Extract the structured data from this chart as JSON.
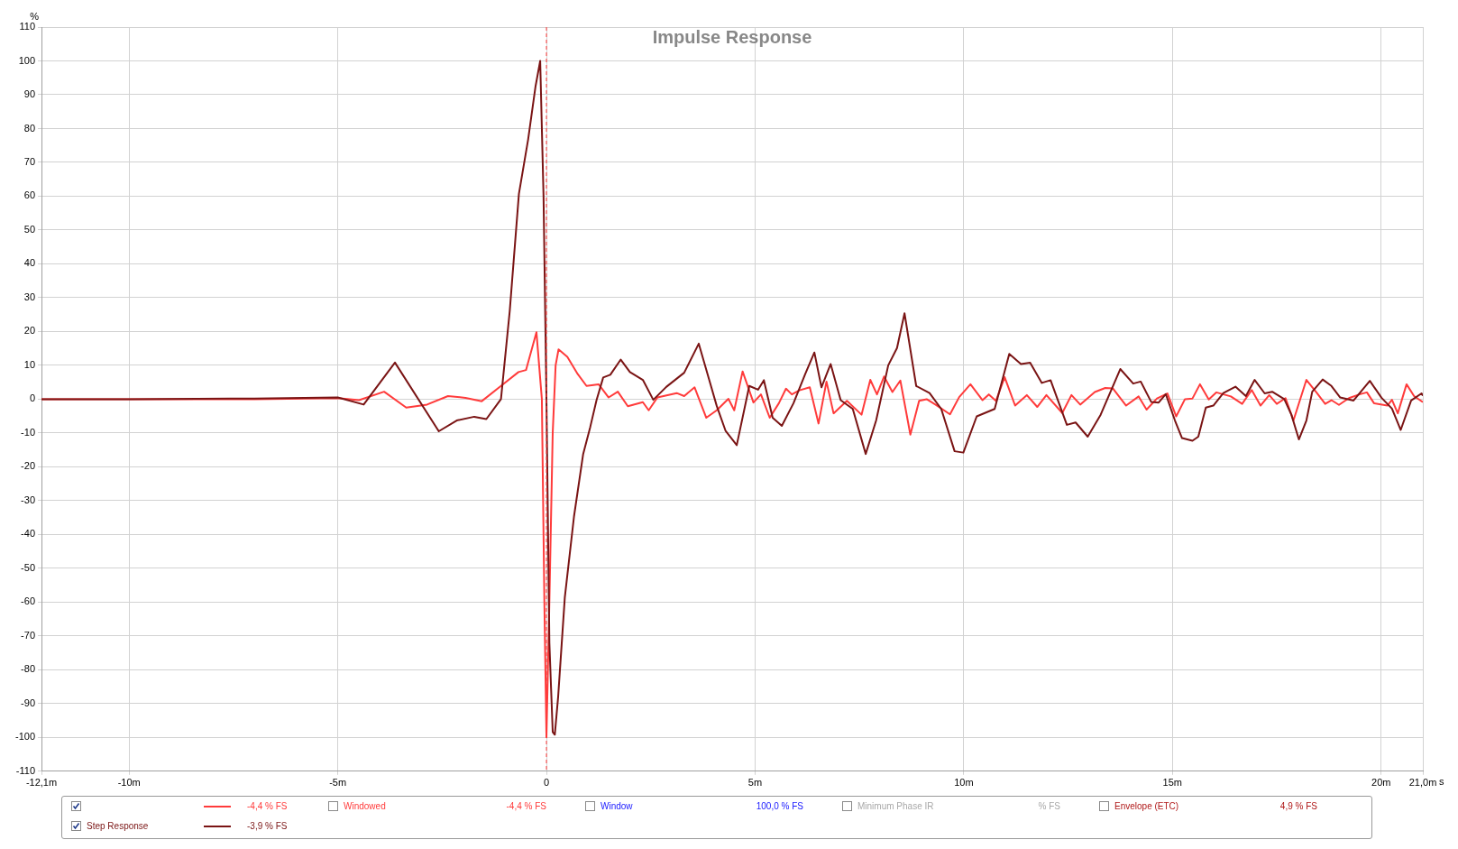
{
  "chart_data": {
    "type": "line",
    "title": "Impulse Response",
    "xlabel": "s",
    "ylabel": "%",
    "xlim": [
      -12.1,
      21
    ],
    "xticks": [
      {
        "value": -12.1,
        "label": "-12,1m"
      },
      {
        "value": -10,
        "label": "-10m"
      },
      {
        "value": -5,
        "label": "-5m"
      },
      0,
      {
        "value": 5,
        "label": "5m"
      },
      {
        "value": 10,
        "label": "10m"
      },
      {
        "value": 15,
        "label": "15m"
      },
      {
        "value": 20,
        "label": "20m"
      },
      {
        "value": 21,
        "label": "21,0m"
      }
    ],
    "ylim": [
      -110,
      110
    ],
    "yticks": [
      -110,
      -100,
      -90,
      -80,
      -70,
      -60,
      -50,
      -40,
      -30,
      -20,
      -10,
      0,
      10,
      20,
      30,
      40,
      50,
      60,
      70,
      80,
      90,
      100,
      110
    ],
    "grid": true,
    "legend": "bottom",
    "line_style": "solid",
    "ref_lines": [
      {
        "axis": "x",
        "value": 0,
        "color": "#ff3b3b",
        "line_style": "dashed"
      }
    ],
    "annotations": [
      "-3,9 % FS",
      "-4,4 % FS",
      "Windowed",
      "-4,4 % FS",
      "Window",
      "100,0 % FS",
      "Minimum Phase IR",
      "% FS",
      "Envelope (ETC)",
      "4,9 % FS"
    ],
    "series": [
      {
        "color": "#7a1414",
        "x": [
          -12.1,
          -10,
          -7,
          -5,
          -4.38,
          -3.63,
          -2.58,
          -2.15,
          -1.73,
          -1.44,
          -1.09,
          -0.88,
          -0.66,
          -0.44,
          -0.26,
          -0.15,
          -0.07,
          0,
          0.07,
          0.15,
          0.2,
          0.28,
          0.44,
          0.66,
          0.88,
          1.05,
          1.2,
          1.36,
          1.53,
          1.78,
          2.0,
          2.31,
          2.56,
          2.87,
          3.3,
          3.65,
          3.9,
          4.08,
          4.29,
          4.56,
          4.86,
          5.07,
          5.21,
          5.42,
          5.64,
          5.92,
          6.2,
          6.42,
          6.59,
          6.81,
          7.05,
          7.34,
          7.65,
          7.9,
          8.19,
          8.4,
          8.58,
          8.86,
          9.18,
          9.46,
          9.78,
          9.99,
          10.31,
          10.74,
          11.09,
          11.37,
          11.59,
          11.87,
          12.08,
          12.47,
          12.68,
          12.97,
          13.28,
          13.75,
          14.06,
          14.24,
          14.49,
          14.67,
          14.84,
          15.06,
          15.23,
          15.48,
          15.62,
          15.8,
          15.98,
          16.22,
          16.51,
          16.76,
          16.97,
          17.21,
          17.39,
          17.68,
          17.85,
          18.03,
          18.21,
          18.35,
          18.6,
          18.81,
          19.02,
          19.34,
          19.73,
          20.01,
          20.26,
          20.47,
          20.72,
          20.97,
          21
        ],
        "values": [
          0,
          0,
          0.2,
          0.5,
          -1.6,
          10.8,
          -9.5,
          -6.3,
          -5.2,
          -5.9,
          0,
          26,
          60.7,
          76.7,
          92.6,
          100,
          60,
          0,
          -72,
          -98.4,
          -99.2,
          -88,
          -58.6,
          -34.7,
          -16.2,
          -8.2,
          -0.3,
          6.4,
          7.2,
          11.7,
          8,
          5.7,
          -0.2,
          3.6,
          7.8,
          16.4,
          5.7,
          -2,
          -9.3,
          -13.6,
          3.9,
          2.8,
          5.6,
          -5.5,
          -7.9,
          -1.2,
          7.4,
          13.8,
          3.5,
          10.4,
          -0.3,
          -2.9,
          -16.2,
          -6.3,
          10,
          15.1,
          25.4,
          3.9,
          1.8,
          -2.9,
          -15.4,
          -15.8,
          -5.1,
          -2.9,
          13.4,
          10.4,
          10.8,
          4.8,
          5.6,
          -7.6,
          -6.9,
          -11.1,
          -4.6,
          8.9,
          4.6,
          5.2,
          -0.8,
          -1,
          1.5,
          -6.3,
          -11.5,
          -12.3,
          -11.1,
          -2.5,
          -1.9,
          1.8,
          3.7,
          0.9,
          5.7,
          1.7,
          2.2,
          0,
          -4.6,
          -11.9,
          -6.3,
          2.2,
          5.8,
          3.9,
          0.5,
          -0.4,
          5.4,
          0.4,
          -2.8,
          -9.1,
          -0.4,
          1.7,
          1
        ],
        "name": "Step Response"
      },
      {
        "color": "#ff3b3b",
        "x": [
          -12.1,
          -10,
          -7,
          -5,
          -4.49,
          -3.89,
          -3.36,
          -2.86,
          -2.36,
          -1.94,
          -1.55,
          -1.09,
          -0.67,
          -0.49,
          -0.24,
          -0.11,
          -0.05,
          0,
          0.07,
          0.15,
          0.22,
          0.29,
          0.5,
          0.75,
          0.96,
          1.25,
          1.49,
          1.71,
          1.95,
          2.31,
          2.45,
          2.66,
          3.12,
          3.3,
          3.55,
          3.83,
          4.08,
          4.36,
          4.5,
          4.7,
          4.96,
          5.14,
          5.35,
          5.57,
          5.74,
          5.88,
          6.06,
          6.31,
          6.52,
          6.71,
          6.88,
          7.2,
          7.55,
          7.76,
          7.92,
          8.09,
          8.29,
          8.48,
          8.72,
          8.93,
          9.11,
          9.32,
          9.67,
          9.89,
          10.16,
          10.45,
          10.6,
          10.77,
          10.98,
          11.23,
          11.51,
          11.76,
          11.98,
          12.36,
          12.58,
          12.79,
          13.14,
          13.39,
          13.57,
          13.89,
          14.19,
          14.38,
          14.63,
          14.88,
          15.09,
          15.3,
          15.48,
          15.66,
          15.87,
          16.05,
          16.4,
          16.67,
          16.9,
          17.11,
          17.32,
          17.5,
          17.71,
          17.9,
          18.21,
          18.45,
          18.66,
          18.81,
          18.99,
          19.23,
          19.48,
          19.66,
          19.83,
          20.15,
          20.26,
          20.4,
          20.61,
          20.79,
          21
        ],
        "values": [
          0,
          0,
          0,
          0.3,
          -0.3,
          2.2,
          -2.5,
          -1.6,
          0.9,
          0.4,
          -0.6,
          3.9,
          8,
          8.6,
          19.8,
          0,
          -60,
          -100,
          -60,
          -10,
          10,
          14.7,
          12.5,
          7.4,
          3.9,
          4.4,
          0.5,
          2.2,
          -2.1,
          -0.9,
          -3.3,
          0.5,
          1.8,
          0.9,
          3.5,
          -5.5,
          -3.3,
          0.1,
          -3.3,
          8.2,
          -1,
          1.4,
          -5.5,
          -1.2,
          3.1,
          1.4,
          2.6,
          3.5,
          -7.2,
          5.2,
          -4.2,
          -0.5,
          -4.6,
          5.7,
          1.4,
          6.7,
          2.1,
          5.5,
          -10.5,
          -0.5,
          0,
          -1.6,
          -4.5,
          0.6,
          4.4,
          -0.3,
          1.4,
          -0.5,
          6.5,
          -1.9,
          1.2,
          -2.3,
          1.2,
          -4.1,
          1.2,
          -1.6,
          2.1,
          3.3,
          3.2,
          -1.9,
          0.8,
          -3.1,
          0.2,
          1.7,
          -5.1,
          0,
          0.2,
          4.4,
          -0.1,
          2,
          0.8,
          -1.4,
          2.7,
          -1.9,
          1.2,
          -1.4,
          0.3,
          -6.3,
          5.7,
          2,
          -1.4,
          -0.3,
          -1.7,
          0.3,
          1.4,
          2,
          -1.2,
          -1.9,
          -0.2,
          -4.2,
          4.4,
          0.9,
          -0.9
        ]
      }
    ]
  }
}
